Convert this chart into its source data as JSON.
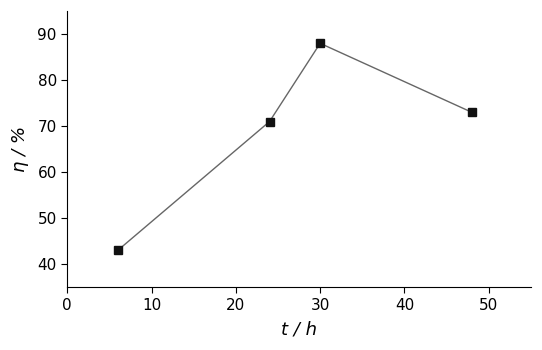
{
  "x": [
    6,
    24,
    30,
    48
  ],
  "y": [
    43,
    71,
    88,
    73
  ],
  "xlabel": "t / h",
  "ylabel": "η / %",
  "xlim": [
    0,
    55
  ],
  "ylim": [
    35,
    95
  ],
  "xticks": [
    0,
    10,
    20,
    30,
    40,
    50
  ],
  "yticks": [
    40,
    50,
    60,
    70,
    80,
    90
  ],
  "line_color": "#666666",
  "marker_color": "#111111",
  "marker": "s",
  "marker_size": 6,
  "line_width": 1.0,
  "xlabel_fontsize": 13,
  "ylabel_fontsize": 13,
  "tick_fontsize": 11,
  "background_color": "#ffffff"
}
